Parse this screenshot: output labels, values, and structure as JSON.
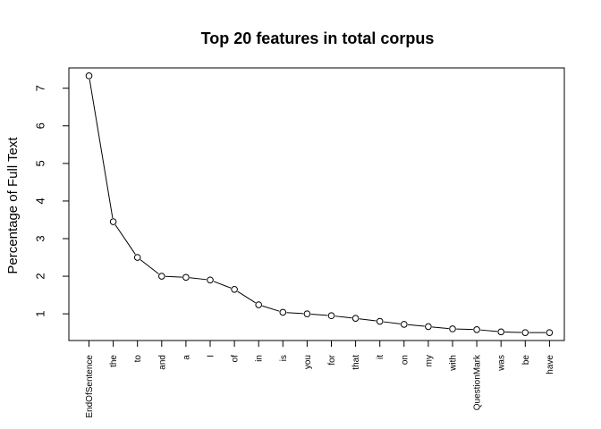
{
  "chart_data": {
    "type": "line",
    "title": "Top 20 features in total corpus",
    "xlabel": "",
    "ylabel": "Percentage of Full Text",
    "categories": [
      "EndOfSentence",
      "the",
      "to",
      "and",
      "a",
      "I",
      "of",
      "in",
      "is",
      "you",
      "for",
      "that",
      "it",
      "on",
      "my",
      "with",
      "QuestionMark",
      "was",
      "be",
      "have"
    ],
    "values": [
      7.33,
      3.45,
      2.5,
      2.0,
      1.97,
      1.9,
      1.65,
      1.24,
      1.04,
      1.0,
      0.95,
      0.88,
      0.8,
      0.72,
      0.66,
      0.6,
      0.58,
      0.52,
      0.5,
      0.5
    ],
    "yticks": [
      1,
      2,
      3,
      4,
      5,
      6,
      7
    ],
    "ylim": [
      0.29,
      7.54
    ],
    "grid": false,
    "legend": "none"
  }
}
